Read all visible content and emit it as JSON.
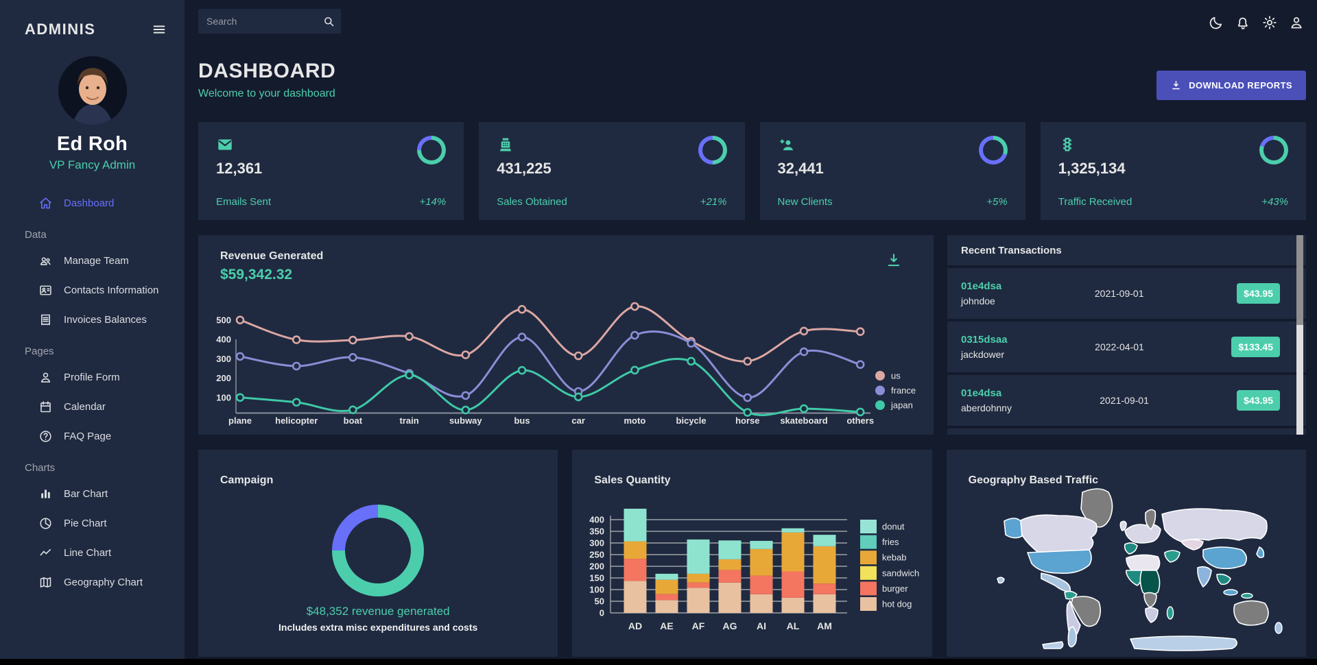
{
  "colors": {
    "bg": "#141b2d",
    "panel": "#1f2a40",
    "green": "#4cceac",
    "blue": "#6870fa",
    "button": "#4a50b8",
    "text": "#e6e6e6",
    "muted": "#a1a5b0"
  },
  "sidebar": {
    "brand": "ADMINIS",
    "user": {
      "name": "Ed Roh",
      "role": "VP Fancy Admin"
    },
    "sections": [
      {
        "label": "",
        "items": [
          {
            "icon": "home-icon",
            "label": "Dashboard",
            "active": true
          }
        ]
      },
      {
        "label": "Data",
        "items": [
          {
            "icon": "people-icon",
            "label": "Manage Team"
          },
          {
            "icon": "contacts-icon",
            "label": "Contacts Information"
          },
          {
            "icon": "receipt-icon",
            "label": "Invoices Balances"
          }
        ]
      },
      {
        "label": "Pages",
        "items": [
          {
            "icon": "person-icon",
            "label": "Profile Form"
          },
          {
            "icon": "calendar-icon",
            "label": "Calendar"
          },
          {
            "icon": "help-icon",
            "label": "FAQ Page"
          }
        ]
      },
      {
        "label": "Charts",
        "items": [
          {
            "icon": "bar-chart-icon",
            "label": "Bar Chart"
          },
          {
            "icon": "pie-chart-icon",
            "label": "Pie Chart"
          },
          {
            "icon": "line-chart-icon",
            "label": "Line Chart"
          },
          {
            "icon": "map-icon",
            "label": "Geography Chart"
          }
        ]
      }
    ]
  },
  "topbar": {
    "search_placeholder": "Search",
    "icons": [
      "moon-icon",
      "bell-icon",
      "gear-icon",
      "person-icon"
    ]
  },
  "header": {
    "title": "DASHBOARD",
    "subtitle": "Welcome to your dashboard",
    "download_label": "DOWNLOAD REPORTS"
  },
  "stat_cards": [
    {
      "icon": "email-icon",
      "value": "12,361",
      "label": "Emails Sent",
      "delta": "+14%",
      "progress": 0.75
    },
    {
      "icon": "pos-icon",
      "value": "431,225",
      "label": "Sales Obtained",
      "delta": "+21%",
      "progress": 0.5
    },
    {
      "icon": "person-add-icon",
      "value": "32,441",
      "label": "New Clients",
      "delta": "+5%",
      "progress": 0.3
    },
    {
      "icon": "traffic-icon",
      "value": "1,325,134",
      "label": "Traffic Received",
      "delta": "+43%",
      "progress": 0.8
    }
  ],
  "revenue": {
    "title": "Revenue Generated",
    "amount": "$59,342.32",
    "chart_data": {
      "type": "line",
      "categories": [
        "plane",
        "helicopter",
        "boat",
        "train",
        "subway",
        "bus",
        "car",
        "moto",
        "bicycle",
        "horse",
        "skateboard",
        "others"
      ],
      "series": [
        {
          "name": "us",
          "color": "#dca7a3",
          "values": [
            500,
            398,
            396,
            415,
            320,
            555,
            315,
            570,
            390,
            287,
            443,
            440
          ]
        },
        {
          "name": "france",
          "color": "#8b8ed6",
          "values": [
            312,
            262,
            307,
            224,
            110,
            412,
            131,
            421,
            380,
            99,
            336,
            270
          ]
        },
        {
          "name": "japan",
          "color": "#3ec9a7",
          "values": [
            100,
            75,
            36,
            216,
            35,
            240,
            103,
            241,
            287,
            12,
            42,
            25
          ]
        }
      ],
      "yticks": [
        100,
        200,
        300,
        400,
        500
      ],
      "ylim": [
        0,
        600
      ],
      "grid": false,
      "legend_position": "right"
    }
  },
  "transactions": {
    "title": "Recent Transactions",
    "rows": [
      {
        "id": "01e4dsa",
        "user": "johndoe",
        "date": "2021-09-01",
        "amount": "$43.95"
      },
      {
        "id": "0315dsaa",
        "user": "jackdower",
        "date": "2022-04-01",
        "amount": "$133.45"
      },
      {
        "id": "01e4dsa",
        "user": "aberdohnny",
        "date": "2021-09-01",
        "amount": "$43.95"
      }
    ]
  },
  "campaign": {
    "title": "Campaign",
    "progress": 0.75,
    "amount_text": "$48,352 revenue generated",
    "note": "Includes extra misc expenditures and costs"
  },
  "sales": {
    "title": "Sales Quantity",
    "chart_data": {
      "type": "bar",
      "stacked": true,
      "categories": [
        "AD",
        "AE",
        "AF",
        "AG",
        "AI",
        "AL",
        "AM"
      ],
      "series": [
        {
          "name": "hot dog",
          "color": "#e8c1a0",
          "values": [
            137,
            55,
            108,
            130,
            80,
            65,
            80
          ]
        },
        {
          "name": "burger",
          "color": "#f47560",
          "values": [
            95,
            26,
            22,
            54,
            80,
            113,
            46
          ]
        },
        {
          "name": "kebab",
          "color": "#e8a838",
          "values": [
            75,
            61,
            38,
            46,
            114,
            167,
            160
          ]
        },
        {
          "name": "donut",
          "color": "#8ee3cf",
          "values": [
            140,
            26,
            147,
            81,
            35,
            18,
            49
          ]
        }
      ],
      "legend": [
        {
          "name": "donut",
          "color": "#97e3d5"
        },
        {
          "name": "fries",
          "color": "#61cdbb"
        },
        {
          "name": "kebab",
          "color": "#e8a838"
        },
        {
          "name": "sandwich",
          "color": "#f1e15b"
        },
        {
          "name": "burger",
          "color": "#f47560"
        },
        {
          "name": "hot dog",
          "color": "#e8c1a0"
        }
      ],
      "yticks": [
        0,
        50,
        100,
        150,
        200,
        250,
        300,
        350,
        400
      ],
      "ylim": [
        0,
        450
      ],
      "grid": true,
      "legend_position": "right"
    }
  },
  "geography": {
    "title": "Geography Based Traffic",
    "map_palette": [
      "#d7d7e8",
      "#7d7d7d",
      "#5ba3d0",
      "#a8c4e0",
      "#1f8a80",
      "#06544a",
      "#8cb4dc",
      "#b9cfe8",
      "#e3d5e3",
      "#c9cbe2",
      "#2a9d8f",
      "#e9e6f0"
    ]
  }
}
